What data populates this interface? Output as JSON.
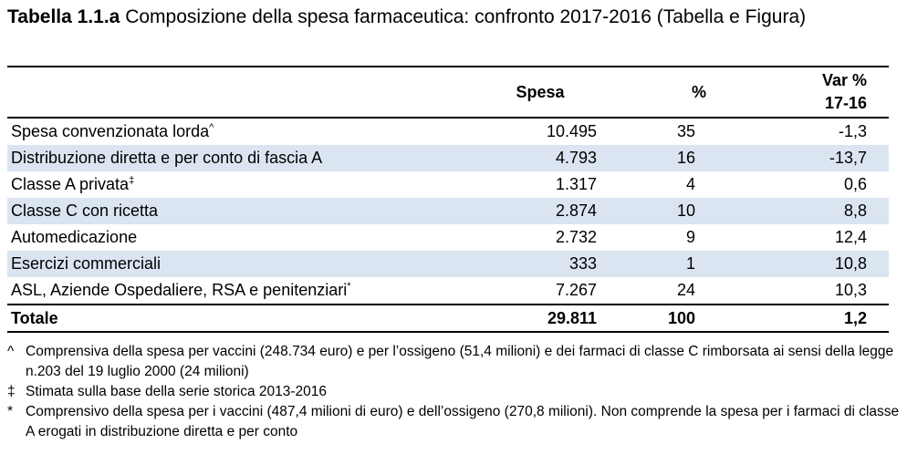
{
  "caption": {
    "number": "Tabella 1.1.a",
    "title": "Composizione della spesa farmaceutica: confronto 2017-2016 (Tabella e Figura)"
  },
  "table": {
    "headers": {
      "label": "",
      "spesa": "Spesa",
      "pct": "%",
      "var_line1": "Var %",
      "var_line2": "17-16"
    },
    "rows": [
      {
        "label": "Spesa convenzionata lorda",
        "mark": "^",
        "spesa": "10.495",
        "pct": "35",
        "var": "-1,3"
      },
      {
        "label": "Distribuzione diretta e per conto di fascia A",
        "mark": "",
        "spesa": "4.793",
        "pct": "16",
        "var": "-13,7"
      },
      {
        "label": "Classe A privata",
        "mark": "‡",
        "spesa": "1.317",
        "pct": "4",
        "var": "0,6"
      },
      {
        "label": "Classe C con ricetta",
        "mark": "",
        "spesa": "2.874",
        "pct": "10",
        "var": "8,8"
      },
      {
        "label": "Automedicazione",
        "mark": "",
        "spesa": "2.732",
        "pct": "9",
        "var": "12,4"
      },
      {
        "label": "Esercizi commerciali",
        "mark": "",
        "spesa": "333",
        "pct": "1",
        "var": "10,8"
      },
      {
        "label": "ASL, Aziende Ospedaliere, RSA e penitenziari",
        "mark": "*",
        "spesa": "7.267",
        "pct": "24",
        "var": "10,3"
      }
    ],
    "total": {
      "label": "Totale",
      "spesa": "29.811",
      "pct": "100",
      "var": "1,2"
    },
    "row_shading_color": "#dbe5f1"
  },
  "notes": [
    {
      "mark": "^",
      "text": "Comprensiva della spesa per vaccini (248.734 euro) e per l’ossigeno (51,4 milioni) e dei farmaci di classe C rimborsata ai sensi della legge n.203 del 19 luglio 2000 (24 milioni)"
    },
    {
      "mark": "‡",
      "text": "Stimata sulla base della serie storica 2013-2016"
    },
    {
      "mark": "*",
      "text": "Comprensivo della spesa per i vaccini (487,4 milioni di euro) e dell’ossigeno (270,8 milioni). Non comprende la spesa per i farmaci di classe A erogati in distribuzione diretta e per conto"
    }
  ]
}
